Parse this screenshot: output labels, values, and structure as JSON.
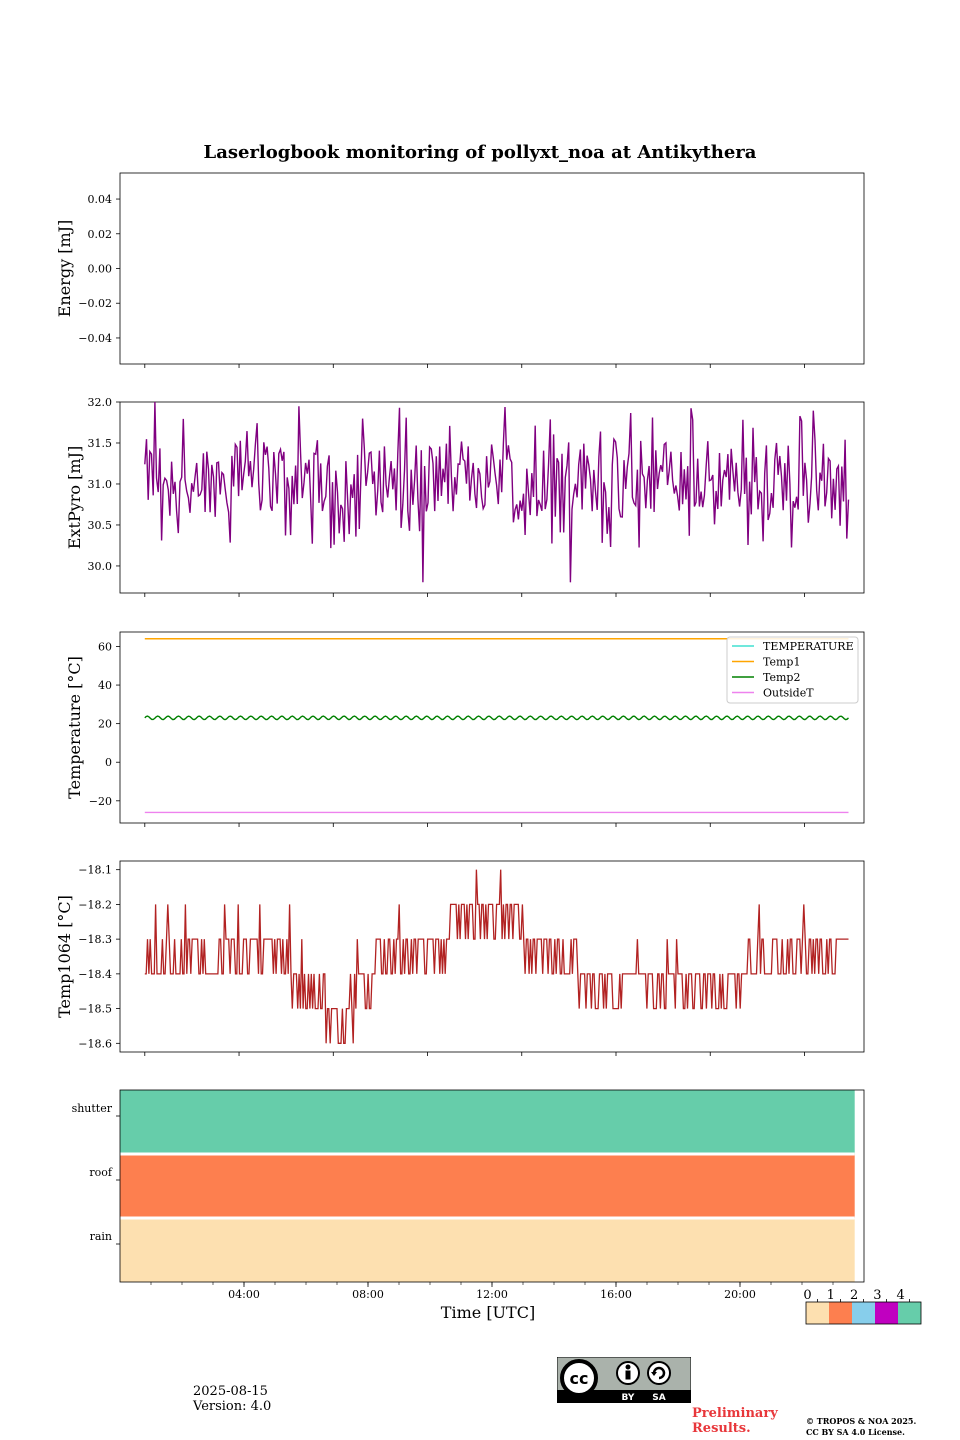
{
  "title": "Laserlogbook monitoring of pollyxt_noa at Antikythera",
  "colors": {
    "extpyro": "#800080",
    "temperature": "#40e0d0",
    "temp1": "#ffa500",
    "temp2": "#008000",
    "outsideT": "#ee82ee",
    "temp1064": "#b22222",
    "status": [
      "#fde0b0",
      "#fd7f4f",
      "#87ceeb",
      "#c000c0",
      "#66cdaa"
    ]
  },
  "chart_data": [
    {
      "type": "line",
      "ylabel": "Energy [mJ]",
      "ylim": [
        -0.055,
        0.055
      ],
      "yticks": [
        0.04,
        0.02,
        0.0,
        -0.02,
        -0.04
      ],
      "ytick_labels": [
        "0.04",
        "0.02",
        "0.00",
        "−0.02",
        "−0.04"
      ],
      "series": []
    },
    {
      "type": "line",
      "ylabel": "ExtPyro [mJ]",
      "ylim": [
        29.67,
        32.0
      ],
      "yticks": [
        32.0,
        31.5,
        31.0,
        30.5,
        30.0
      ],
      "ytick_labels": [
        "32.0",
        "31.5",
        "31.0",
        "30.5",
        "30.0"
      ],
      "series": [
        {
          "x_range_hours": [
            0.8,
            23.5
          ],
          "approx_mean": 31.1,
          "approx_min": 29.75,
          "approx_max": 32.0
        }
      ]
    },
    {
      "type": "line",
      "ylabel": "Temperature [°C]",
      "ylim": [
        -31.5,
        67.5
      ],
      "yticks": [
        60,
        40,
        20,
        0,
        -20
      ],
      "ytick_labels": [
        "60",
        "40",
        "20",
        "0",
        "−20"
      ],
      "legend": [
        "TEMPERATURE",
        "Temp1",
        "Temp2",
        "OutsideT"
      ],
      "legend_position": "top-right",
      "series": [
        {
          "name": "Temp1",
          "value": 64,
          "x_range_hours": [
            0.8,
            23.5
          ]
        },
        {
          "name": "Temp2",
          "value": 23,
          "oscillation": 1,
          "x_range_hours": [
            0.8,
            23.5
          ]
        },
        {
          "name": "OutsideT",
          "value": -26,
          "x_range_hours": [
            0.8,
            23.5
          ]
        }
      ]
    },
    {
      "type": "line",
      "ylabel": "Temp1064 [°C]",
      "ylim": [
        -18.625,
        -18.075
      ],
      "yticks": [
        -18.1,
        -18.2,
        -18.3,
        -18.4,
        -18.5,
        -18.6
      ],
      "ytick_labels": [
        "−18.1",
        "−18.2",
        "−18.3",
        "−18.4",
        "−18.5",
        "−18.6"
      ],
      "series": [
        {
          "x_range_hours": [
            0.8,
            23.5
          ],
          "values_between": [
            -18.6,
            -18.1
          ]
        }
      ]
    },
    {
      "type": "heatmap",
      "rows": [
        "shutter",
        "roof",
        "rain"
      ],
      "row_values": [
        4,
        1,
        0
      ],
      "x_range_hours": [
        0,
        23.7
      ],
      "xlabel": "Time [UTC]",
      "xlim_hours": [
        0,
        24
      ],
      "xticks_hours": [
        4,
        8,
        12,
        16,
        20
      ],
      "xtick_labels": [
        "04:00",
        "08:00",
        "12:00",
        "16:00",
        "20:00"
      ],
      "colorbar_labels": [
        "0",
        "1",
        "2",
        "3",
        "4"
      ]
    }
  ],
  "footer": {
    "date": "2025-08-15",
    "version": "Version: 4.0",
    "license_by": "BY",
    "license_sa": "SA",
    "preliminary_line1": "Preliminary",
    "preliminary_line2": "Results.",
    "copyright_line1": "© TROPOS & NOA 2025.",
    "copyright_line2": "CC BY SA 4.0 License."
  }
}
